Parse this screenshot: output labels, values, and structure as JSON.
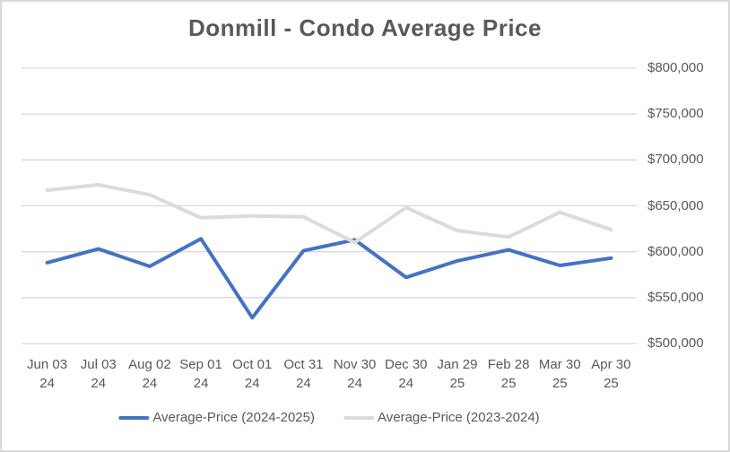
{
  "chart_data": {
    "type": "line",
    "title": "Donmill - Condo Average Price",
    "categories": [
      {
        "line1": "Jun 03",
        "line2": "24"
      },
      {
        "line1": "Jul 03",
        "line2": "24"
      },
      {
        "line1": "Aug 02",
        "line2": "24"
      },
      {
        "line1": "Sep 01",
        "line2": "24"
      },
      {
        "line1": "Oct 01",
        "line2": "24"
      },
      {
        "line1": "Oct 31",
        "line2": "24"
      },
      {
        "line1": "Nov 30",
        "line2": "24"
      },
      {
        "line1": "Dec 30",
        "line2": "24"
      },
      {
        "line1": "Jan 29",
        "line2": "25"
      },
      {
        "line1": "Feb 28",
        "line2": "25"
      },
      {
        "line1": "Mar 30",
        "line2": "25"
      },
      {
        "line1": "Apr 30",
        "line2": "25"
      }
    ],
    "series": [
      {
        "name": "Average-Price (2024-2025)",
        "color": "#4472C4",
        "values": [
          588000,
          603000,
          584000,
          614000,
          528000,
          601000,
          613000,
          572000,
          590000,
          602000,
          585000,
          593000
        ]
      },
      {
        "name": "Average-Price (2023-2024)",
        "color": "#DBDBDB",
        "values": [
          667000,
          673000,
          662000,
          637000,
          639000,
          638000,
          610000,
          648000,
          623000,
          616000,
          643000,
          624000
        ]
      }
    ],
    "ylim": [
      500000,
      800000
    ],
    "y_tick_step": 50000,
    "y_tick_labels": [
      "$800,000",
      "$750,000",
      "$700,000",
      "$650,000",
      "$600,000",
      "$550,000",
      "$500,000"
    ],
    "xlabel": "",
    "ylabel": "",
    "grid": "horizontal",
    "y_axis_side": "right",
    "legend_position": "bottom"
  },
  "colors": {
    "background": "#FFFFFF",
    "border": "#D9D9D9",
    "gridline": "#D9D9D9",
    "title_text": "#595959",
    "axis_text": "#595959",
    "series_blue": "#4472C4",
    "series_gray": "#DBDBDB"
  }
}
